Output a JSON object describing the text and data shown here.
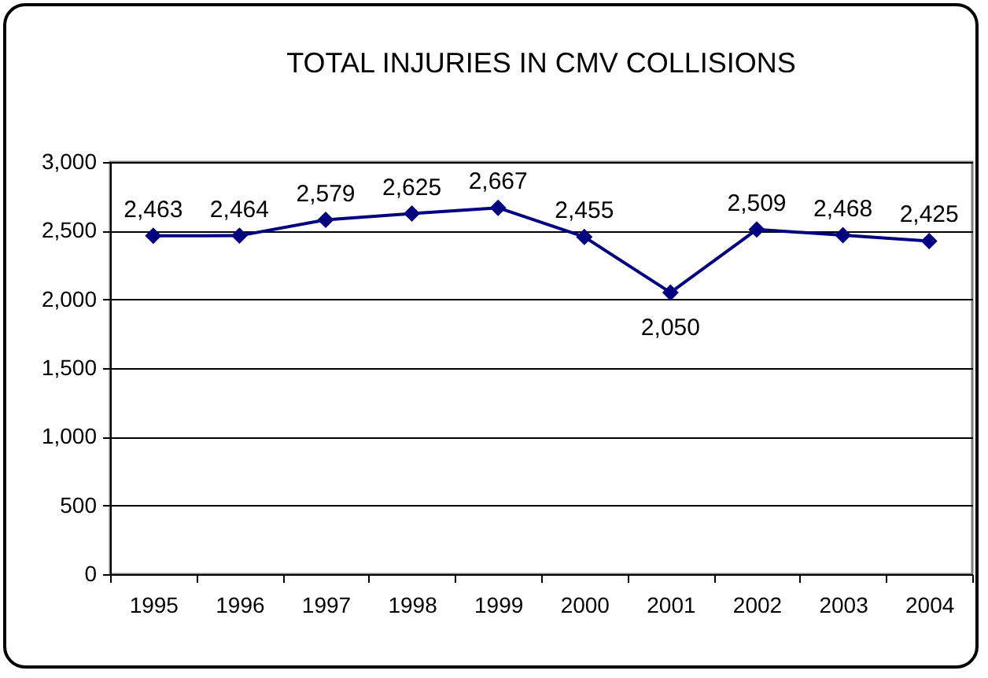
{
  "chart_data": {
    "type": "line",
    "title": "TOTAL INJURIES IN CMV COLLISIONS",
    "categories": [
      "1995",
      "1996",
      "1997",
      "1998",
      "1999",
      "2000",
      "2001",
      "2002",
      "2003",
      "2004"
    ],
    "series": [
      {
        "color": "#000080",
        "values": [
          2463,
          2464,
          2579,
          2625,
          2667,
          2455,
          2050,
          2509,
          2468,
          2425
        ],
        "value_labels": [
          "2,463",
          "2,464",
          "2,579",
          "2,625",
          "2,667",
          "2,455",
          "2,050",
          "2,509",
          "2,468",
          "2,425"
        ]
      }
    ],
    "ylim": [
      0,
      3000
    ],
    "yticks": [
      0,
      500,
      {
        "value": 1000,
        "label": "1,000"
      },
      {
        "value": 1500,
        "label": "1,500"
      },
      {
        "value": 2000,
        "label": "2,000"
      },
      {
        "value": 2500,
        "label": "2,500"
      },
      {
        "value": 3000,
        "label": "3,000"
      }
    ],
    "grid": "y",
    "marker": "diamond",
    "line_style": "solid"
  }
}
